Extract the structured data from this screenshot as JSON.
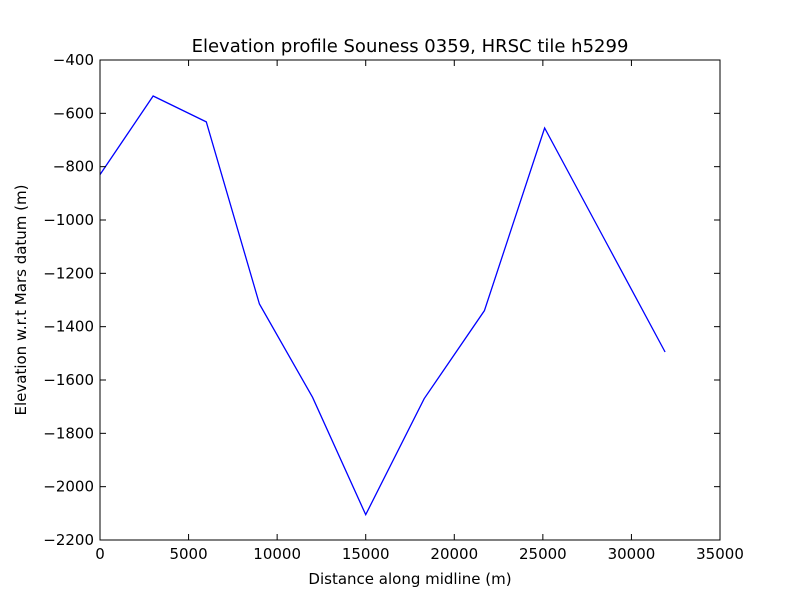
{
  "chart_data": {
    "type": "line",
    "title": "Elevation profile Souness 0359, HRSC tile h5299",
    "xlabel": "Distance along midline (m)",
    "ylabel": "Elevation w.r.t Mars datum (m)",
    "xlim": [
      0,
      35000
    ],
    "ylim": [
      -2200,
      -400
    ],
    "xticks": [
      0,
      5000,
      10000,
      15000,
      20000,
      25000,
      30000,
      35000
    ],
    "yticks": [
      -400,
      -600,
      -800,
      -1000,
      -1200,
      -1400,
      -1600,
      -1800,
      -2000,
      -2200
    ],
    "xtick_labels": [
      "0",
      "5000",
      "10000",
      "15000",
      "20000",
      "25000",
      "30000",
      "35000"
    ],
    "ytick_labels": [
      "−400",
      "−600",
      "−800",
      "−1000",
      "−1200",
      "−1400",
      "−1600",
      "−1800",
      "−2000",
      "−2200"
    ],
    "grid": false,
    "series": [
      {
        "color": "#0000ff",
        "x": [
          0,
          3000,
          6000,
          9000,
          12000,
          15000,
          18300,
          21700,
          25100,
          28500,
          31900
        ],
        "y": [
          -830,
          -535,
          -632,
          -1315,
          -1665,
          -2105,
          -1670,
          -1340,
          -655,
          -1075,
          -1495
        ]
      }
    ]
  }
}
